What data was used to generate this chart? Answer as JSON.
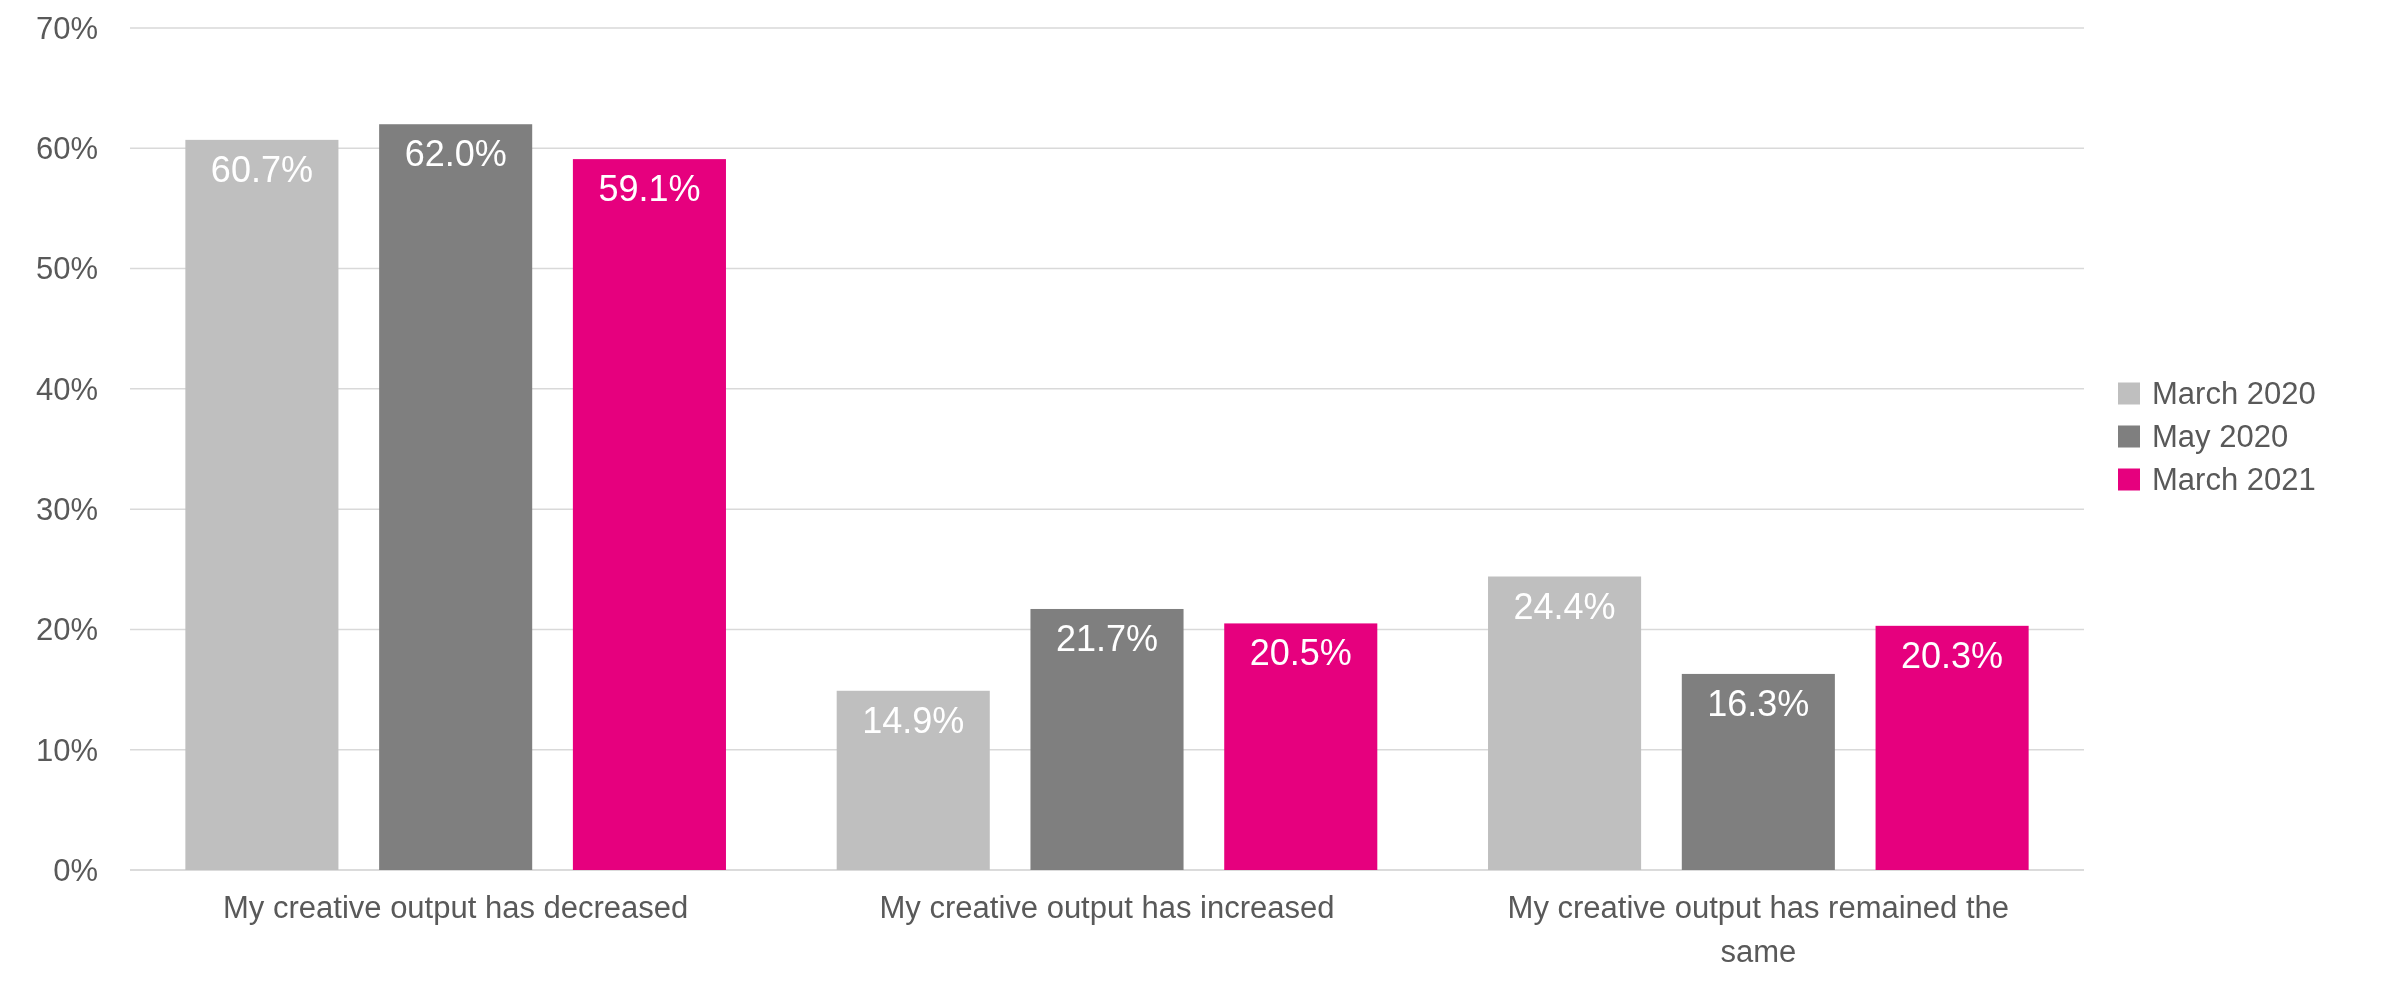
{
  "chart_data": {
    "type": "bar",
    "categories": [
      "My creative output has decreased",
      "My creative output has increased",
      "My creative output has remained the same"
    ],
    "series": [
      {
        "name": "March 2020",
        "color": "#bfbfbf",
        "values": [
          60.7,
          14.9,
          24.4
        ],
        "value_labels": [
          "60.7%",
          "14.9%",
          "24.4%"
        ]
      },
      {
        "name": "May 2020",
        "color": "#7f7f7f",
        "values": [
          62.0,
          21.7,
          16.3
        ],
        "value_labels": [
          "62.0%",
          "21.7%",
          "16.3%"
        ]
      },
      {
        "name": "March 2021",
        "color": "#e6007e",
        "values": [
          59.1,
          20.5,
          20.3
        ],
        "value_labels": [
          "59.1%",
          "20.5%",
          "20.3%"
        ]
      }
    ],
    "ylim": [
      0,
      70
    ],
    "yticks": [
      {
        "value": 0,
        "label": "0%"
      },
      {
        "value": 10,
        "label": "10%"
      },
      {
        "value": 20,
        "label": "20%"
      },
      {
        "value": 30,
        "label": "30%"
      },
      {
        "value": 40,
        "label": "40%"
      },
      {
        "value": 50,
        "label": "50%"
      },
      {
        "value": 60,
        "label": "60%"
      },
      {
        "value": 70,
        "label": "70%"
      }
    ],
    "grid": "y",
    "legend": "right"
  }
}
